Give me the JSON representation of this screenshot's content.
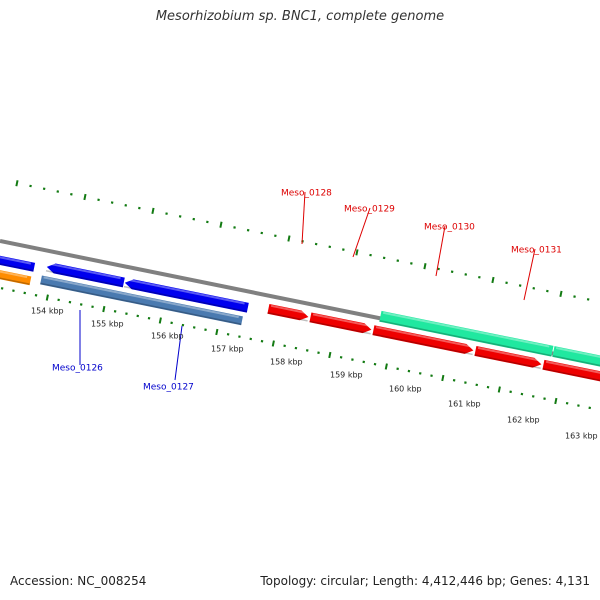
{
  "title": "Mesorhizobium sp. BNC1, complete genome",
  "footer": {
    "accession": "Accession: NC_008254",
    "stats": "Topology: circular; Length: 4,412,446 bp; Genes: 4,131"
  },
  "kbp_labels": [
    "154 kbp",
    "155 kbp",
    "156 kbp",
    "157 kbp",
    "158 kbp",
    "159 kbp",
    "160 kbp",
    "161 kbp",
    "162 kbp",
    "163 kbp"
  ],
  "gene_labels": [
    {
      "name": "Meso_0126",
      "color": "#0000cc"
    },
    {
      "name": "Meso_0127",
      "color": "#0000cc"
    },
    {
      "name": "Meso_0128",
      "color": "#dd0000"
    },
    {
      "name": "Meso_0129",
      "color": "#dd0000"
    },
    {
      "name": "Meso_0130",
      "color": "#dd0000"
    },
    {
      "name": "Meso_0131",
      "color": "#dd0000"
    }
  ],
  "colors": {
    "backbone": "#808080",
    "tick": "#127a12",
    "forward_red": "#ee0000",
    "reverse_blue": "#0000ee",
    "steel_blue": "#4a7ab0",
    "orange": "#ff8c00",
    "mint": "#20e8a0"
  }
}
